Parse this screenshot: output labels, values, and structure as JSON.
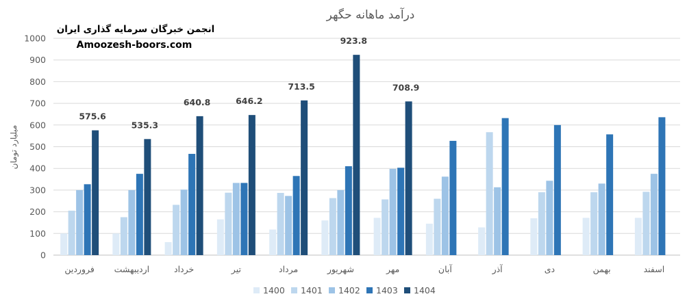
{
  "watermark": {
    "line1": "انجمن خبرگان سرمایه گذاری ایران",
    "line2": "Amoozesh-boors.com"
  },
  "chart_data": {
    "type": "bar",
    "title": "درآمد ماهانه حگهر",
    "xlabel": "",
    "ylabel": "میلیارد تومان",
    "ylim": [
      0,
      1000
    ],
    "yticks": [
      0,
      100,
      200,
      300,
      400,
      500,
      600,
      700,
      800,
      900,
      1000
    ],
    "grid": true,
    "legend_position": "bottom",
    "categories": [
      "فروردین",
      "اردیبهشت",
      "خرداد",
      "تیر",
      "مرداد",
      "شهریور",
      "مهر",
      "آبان",
      "آذر",
      "دی",
      "بهمن",
      "اسفند"
    ],
    "series": [
      {
        "name": "1400",
        "color": "#deebf7",
        "values": [
          100,
          100,
          60,
          165,
          118,
          160,
          172,
          145,
          128,
          170,
          172,
          172
        ]
      },
      {
        "name": "1401",
        "color": "#bdd7ee",
        "values": [
          205,
          175,
          232,
          288,
          287,
          263,
          257,
          260,
          567,
          290,
          290,
          292
        ]
      },
      {
        "name": "1402",
        "color": "#9dc3e6",
        "values": [
          300,
          300,
          302,
          333,
          273,
          300,
          398,
          362,
          313,
          343,
          330,
          375
        ]
      },
      {
        "name": "1403",
        "color": "#2e75b6",
        "values": [
          327,
          375,
          467,
          333,
          365,
          410,
          403,
          527,
          632,
          600,
          557,
          636
        ]
      },
      {
        "name": "1404",
        "color": "#1f4e79",
        "values": [
          575.6,
          535.3,
          640.8,
          646.2,
          713.5,
          923.8,
          708.9,
          null,
          null,
          null,
          null,
          null
        ]
      }
    ],
    "data_labels": [
      "575.6",
      "535.3",
      "640.8",
      "646.2",
      "713.5",
      "923.8",
      "708.9"
    ]
  }
}
